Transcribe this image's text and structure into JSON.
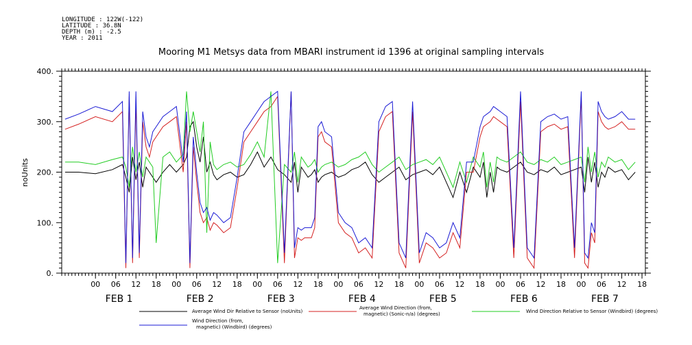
{
  "header_info": [
    "LONGITUDE : 122W(-122)",
    "LATITUDE : 36.8N",
    "DEPTH (m) : -2.5",
    "YEAR : 2011"
  ],
  "chart_data": {
    "type": "line",
    "title": "Mooring M1 Metsys data from MBARI instrument id 1396 at original sampling intervals",
    "ylabel": "noUnits",
    "xlabel": "",
    "ylim": [
      0,
      400
    ],
    "yticks": [
      "0.",
      "100.",
      "200.",
      "300.",
      "400."
    ],
    "xlim_hours": [
      -10,
      163
    ],
    "hour_ticks": [
      "00",
      "06",
      "12",
      "18",
      "00",
      "06",
      "12",
      "18",
      "00",
      "06",
      "12",
      "18",
      "00",
      "06",
      "12",
      "18",
      "00",
      "06",
      "12",
      "18",
      "00",
      "06",
      "12",
      "18",
      "00",
      "06",
      "12",
      "18"
    ],
    "day_labels": [
      "FEB  1",
      "FEB  2",
      "FEB  3",
      "FEB  4",
      "FEB  5",
      "FEB  6",
      "FEB  7"
    ],
    "grid": false,
    "legend_placement": "bottom",
    "series": [
      {
        "name": "Average Wind Dir Relative to Sensor (noUnits)",
        "color": "#000000",
        "x": [
          -9,
          -5,
          0,
          5,
          8,
          9,
          10,
          11,
          12,
          13,
          14,
          15,
          16,
          17,
          18,
          20,
          22,
          24,
          26,
          27,
          28,
          29,
          30,
          31,
          32,
          33,
          34,
          35,
          36,
          38,
          40,
          42,
          44,
          46,
          48,
          50,
          52,
          54,
          56,
          58,
          59,
          60,
          61,
          62,
          63,
          64,
          65,
          66,
          67,
          68,
          70,
          72,
          74,
          76,
          78,
          80,
          82,
          84,
          86,
          88,
          90,
          92,
          94,
          96,
          98,
          100,
          102,
          104,
          106,
          108,
          110,
          112,
          114,
          115,
          116,
          117,
          118,
          119,
          120,
          122,
          124,
          126,
          128,
          130,
          132,
          134,
          136,
          138,
          140,
          142,
          144,
          145,
          146,
          147,
          148,
          149,
          150,
          151,
          152,
          154,
          156,
          158,
          160
        ],
        "y": [
          200,
          200,
          197,
          205,
          215,
          190,
          160,
          230,
          185,
          220,
          170,
          210,
          200,
          190,
          180,
          200,
          215,
          200,
          215,
          230,
          290,
          300,
          250,
          220,
          270,
          200,
          220,
          195,
          185,
          195,
          200,
          190,
          195,
          215,
          240,
          210,
          230,
          205,
          195,
          180,
          220,
          160,
          210,
          200,
          190,
          195,
          205,
          180,
          190,
          195,
          200,
          190,
          195,
          205,
          210,
          220,
          195,
          180,
          190,
          200,
          210,
          185,
          195,
          200,
          205,
          195,
          210,
          180,
          150,
          200,
          160,
          210,
          190,
          220,
          150,
          200,
          160,
          210,
          205,
          200,
          210,
          220,
          200,
          195,
          205,
          200,
          210,
          195,
          200,
          205,
          210,
          160,
          230,
          180,
          220,
          170,
          200,
          190,
          210,
          200,
          205,
          185,
          200
        ]
      },
      {
        "name": "Average Wind Direction (from, magnetic) (Sonic-n/a) (degrees)",
        "color": "#d42020",
        "x": [
          -9,
          -5,
          0,
          5,
          8,
          9,
          10,
          11,
          12,
          13,
          14,
          15,
          16,
          17,
          18,
          20,
          22,
          24,
          26,
          27,
          28,
          29,
          30,
          31,
          32,
          33,
          34,
          35,
          36,
          38,
          40,
          42,
          44,
          46,
          48,
          50,
          52,
          54,
          56,
          58,
          59,
          60,
          61,
          62,
          63,
          64,
          65,
          66,
          67,
          68,
          70,
          72,
          74,
          76,
          78,
          80,
          82,
          84,
          86,
          88,
          90,
          92,
          94,
          96,
          98,
          100,
          102,
          104,
          106,
          108,
          110,
          112,
          114,
          115,
          116,
          117,
          118,
          119,
          120,
          122,
          124,
          126,
          128,
          130,
          132,
          134,
          136,
          138,
          140,
          142,
          144,
          145,
          146,
          147,
          148,
          149,
          150,
          151,
          152,
          154,
          156,
          158,
          160
        ],
        "y": [
          285,
          295,
          310,
          300,
          320,
          10,
          350,
          20,
          340,
          30,
          300,
          250,
          230,
          260,
          270,
          290,
          300,
          310,
          200,
          300,
          10,
          250,
          180,
          120,
          100,
          110,
          85,
          100,
          95,
          80,
          90,
          170,
          260,
          280,
          300,
          320,
          330,
          350,
          20,
          360,
          30,
          70,
          65,
          70,
          70,
          70,
          90,
          270,
          280,
          260,
          250,
          100,
          80,
          70,
          40,
          50,
          30,
          280,
          310,
          320,
          40,
          10,
          320,
          20,
          60,
          50,
          30,
          40,
          80,
          50,
          200,
          200,
          270,
          290,
          295,
          300,
          310,
          305,
          300,
          290,
          30,
          340,
          30,
          10,
          280,
          290,
          295,
          285,
          290,
          30,
          350,
          20,
          10,
          80,
          60,
          320,
          300,
          290,
          285,
          290,
          300,
          285,
          285
        ]
      },
      {
        "name": "Wind Direction Relative to Sensor (Windbird) (degrees)",
        "color": "#22cc22",
        "x": [
          -9,
          -5,
          0,
          5,
          8,
          9,
          10,
          11,
          12,
          13,
          14,
          15,
          16,
          17,
          18,
          20,
          22,
          24,
          26,
          27,
          28,
          29,
          30,
          31,
          32,
          33,
          34,
          35,
          36,
          38,
          40,
          42,
          44,
          46,
          48,
          50,
          52,
          54,
          56,
          58,
          59,
          60,
          61,
          62,
          63,
          64,
          65,
          66,
          67,
          68,
          70,
          72,
          74,
          76,
          78,
          80,
          82,
          84,
          86,
          88,
          90,
          92,
          94,
          96,
          98,
          100,
          102,
          104,
          106,
          108,
          110,
          112,
          114,
          115,
          116,
          117,
          118,
          119,
          120,
          122,
          124,
          126,
          128,
          130,
          132,
          134,
          136,
          138,
          140,
          142,
          144,
          145,
          146,
          147,
          148,
          149,
          150,
          151,
          152,
          154,
          156,
          158,
          160
        ],
        "y": [
          220,
          220,
          215,
          225,
          230,
          210,
          170,
          250,
          200,
          240,
          190,
          230,
          220,
          210,
          60,
          230,
          240,
          220,
          235,
          360,
          280,
          320,
          280,
          240,
          300,
          80,
          260,
          215,
          205,
          215,
          220,
          210,
          215,
          235,
          260,
          230,
          360,
          20,
          215,
          200,
          240,
          180,
          230,
          220,
          210,
          215,
          225,
          200,
          210,
          215,
          220,
          210,
          215,
          225,
          230,
          240,
          215,
          200,
          210,
          220,
          230,
          205,
          215,
          220,
          225,
          215,
          230,
          200,
          170,
          220,
          180,
          230,
          210,
          240,
          170,
          220,
          180,
          230,
          225,
          220,
          230,
          240,
          220,
          215,
          225,
          220,
          230,
          215,
          220,
          225,
          230,
          180,
          250,
          200,
          240,
          190,
          220,
          210,
          230,
          220,
          225,
          205,
          220
        ]
      },
      {
        "name": "Wind Direction (from, magnetic) (Windbird) (degrees)",
        "color": "#1a1ad4",
        "x": [
          -9,
          -5,
          0,
          5,
          8,
          9,
          10,
          11,
          12,
          13,
          14,
          15,
          16,
          17,
          18,
          20,
          22,
          24,
          26,
          27,
          28,
          29,
          30,
          31,
          32,
          33,
          34,
          35,
          36,
          38,
          40,
          42,
          44,
          46,
          48,
          50,
          52,
          54,
          56,
          58,
          59,
          60,
          61,
          62,
          63,
          64,
          65,
          66,
          67,
          68,
          70,
          72,
          74,
          76,
          78,
          80,
          82,
          84,
          86,
          88,
          90,
          92,
          94,
          96,
          98,
          100,
          102,
          104,
          106,
          108,
          110,
          112,
          114,
          115,
          116,
          117,
          118,
          119,
          120,
          122,
          124,
          126,
          128,
          130,
          132,
          134,
          136,
          138,
          140,
          142,
          144,
          145,
          146,
          147,
          148,
          149,
          150,
          151,
          152,
          154,
          156,
          158,
          160
        ],
        "y": [
          305,
          315,
          330,
          320,
          340,
          20,
          360,
          30,
          360,
          40,
          320,
          270,
          250,
          280,
          290,
          310,
          320,
          330,
          220,
          320,
          20,
          270,
          200,
          140,
          120,
          130,
          105,
          120,
          115,
          100,
          110,
          190,
          280,
          300,
          320,
          340,
          350,
          360,
          40,
          360,
          50,
          90,
          85,
          90,
          90,
          90,
          110,
          290,
          300,
          280,
          270,
          120,
          100,
          90,
          60,
          70,
          50,
          300,
          330,
          340,
          60,
          30,
          340,
          40,
          80,
          70,
          50,
          60,
          100,
          70,
          220,
          220,
          290,
          310,
          315,
          320,
          330,
          325,
          320,
          310,
          50,
          360,
          50,
          30,
          300,
          310,
          315,
          305,
          310,
          50,
          360,
          40,
          30,
          100,
          80,
          340,
          320,
          310,
          305,
          310,
          320,
          305,
          305
        ]
      }
    ]
  }
}
